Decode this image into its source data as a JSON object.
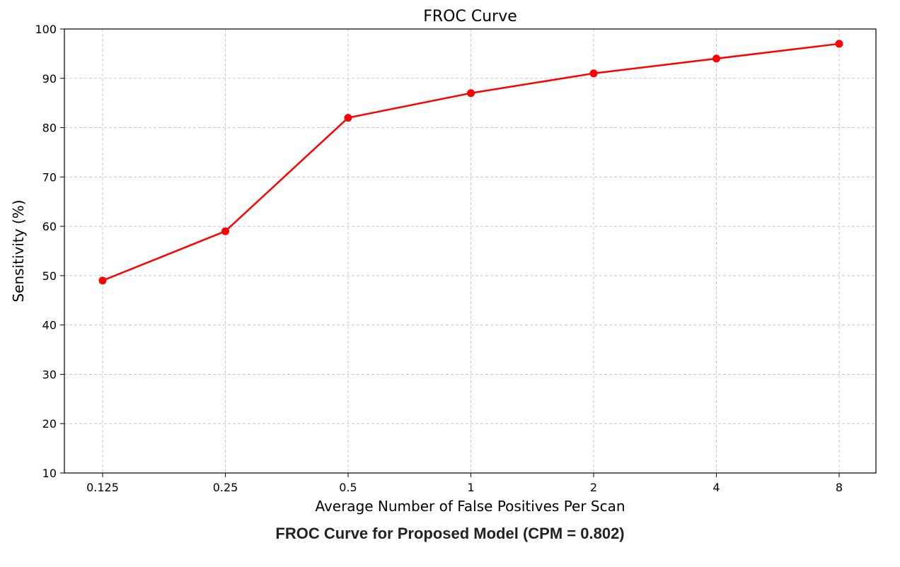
{
  "chart_data": {
    "type": "line",
    "title": "FROC Curve",
    "xlabel": "Average Number of False Positives Per Scan",
    "ylabel": "Sensitivity (%)",
    "categories": [
      "0.125",
      "0.25",
      "0.5",
      "1",
      "2",
      "4",
      "8"
    ],
    "series": [
      {
        "values": [
          49,
          59,
          82,
          87,
          91,
          94,
          97
        ],
        "color": "#ff0000",
        "marker": "circle"
      }
    ],
    "ylim": [
      10,
      100
    ],
    "yticks": [
      "10",
      "20",
      "30",
      "40",
      "50",
      "60",
      "70",
      "80",
      "90",
      "100"
    ],
    "grid": true,
    "grid_style": "dashed",
    "grid_color": "#c8c8c8"
  },
  "caption": "FROC Curve for Proposed Model (CPM = 0.802)"
}
